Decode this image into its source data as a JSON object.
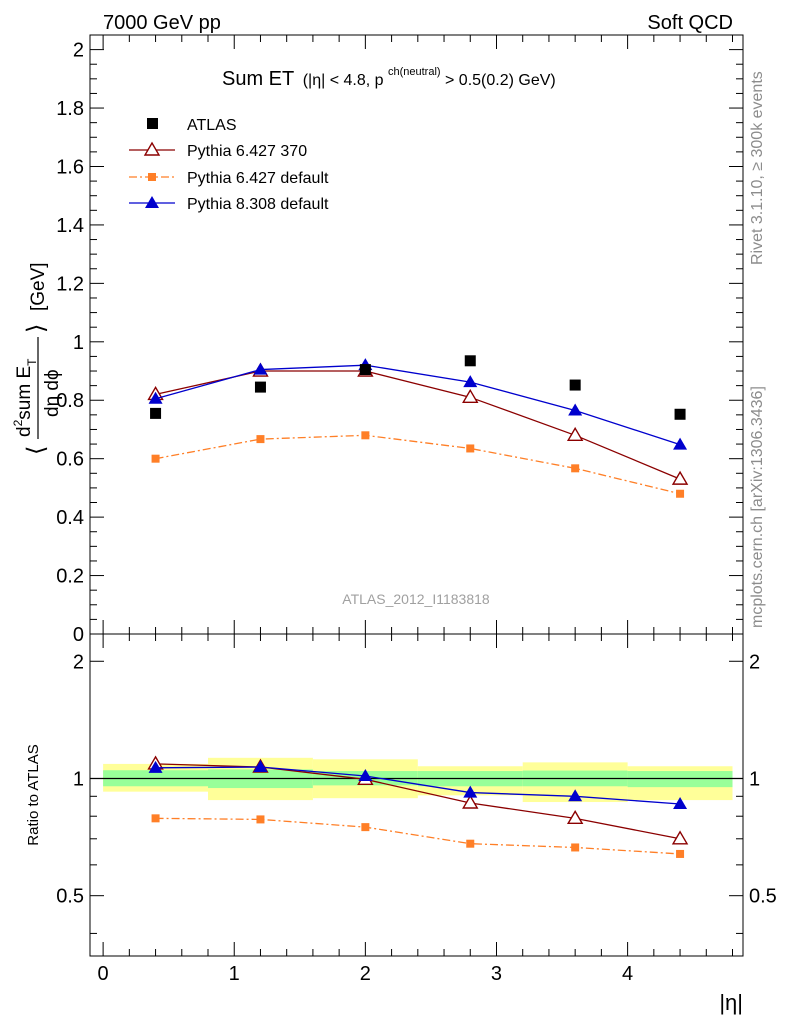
{
  "header": {
    "left": "7000 GeV pp",
    "right": "Soft QCD"
  },
  "side_labels": {
    "rivet": "Rivet 3.1.10, ≥ 300k events",
    "mcplots": "mcplots.cern.ch [arXiv:1306.3436]"
  },
  "title": {
    "main": "Sum ET",
    "cut_a": "(|η| < 4.8, p",
    "cut_sup": "ch(neutral)",
    "cut_b": " > 0.5(0.2) GeV)"
  },
  "watermark": "ATLAS_2012_I1183818",
  "y_label_main": {
    "bracket_l": "⟨",
    "num_d": "d",
    "num_sup": "2",
    "num_text": "sum E",
    "num_sub": "T",
    "den": "dη dϕ",
    "bracket_r": "⟩",
    "unit": "[GeV]"
  },
  "y_label_ratio": "Ratio to ATLAS",
  "x_label": "|η|",
  "colors": {
    "atlas": "#000000",
    "py6_370": "#8b0000",
    "py6_default": "#ff7f27",
    "py8_default": "#0000cd",
    "band_inner": "#99ff99",
    "band_outer": "#ffff99"
  },
  "chart_data": [
    {
      "type": "line",
      "panel": "main",
      "xlim": [
        -0.1,
        4.88
      ],
      "ylim": [
        0,
        2.05
      ],
      "x_ticks": [
        0,
        1,
        2,
        3,
        4
      ],
      "y_ticks": [
        0,
        0.2,
        0.4,
        0.6,
        0.8,
        1,
        1.2,
        1.4,
        1.6,
        1.8,
        2
      ],
      "y_tick_labels": [
        "0",
        "0.2",
        "0.4",
        "0.6",
        "0.8",
        "1",
        "1.2",
        "1.4",
        "1.6",
        "1.8",
        "2"
      ],
      "legend_position": "top-left",
      "x": [
        0.4,
        1.2,
        2.0,
        2.8,
        3.6,
        4.4
      ],
      "series": [
        {
          "name": "ATLAS",
          "values": [
            0.755,
            0.845,
            0.905,
            0.935,
            0.852,
            0.752
          ],
          "marker": "square",
          "color": "#000000"
        },
        {
          "name": "Pythia 6.427 370",
          "values": [
            0.82,
            0.9,
            0.9,
            0.81,
            0.68,
            0.53
          ],
          "marker": "open-triangle",
          "color": "#8b0000"
        },
        {
          "name": "Pythia 6.427 default",
          "values": [
            0.6,
            0.667,
            0.68,
            0.635,
            0.567,
            0.48
          ],
          "marker": "small-square",
          "color": "#ff7f27",
          "dash": "dashdot"
        },
        {
          "name": "Pythia 8.308 default",
          "values": [
            0.805,
            0.905,
            0.92,
            0.862,
            0.765,
            0.648
          ],
          "marker": "filled-triangle",
          "color": "#0000cd"
        }
      ]
    },
    {
      "type": "line",
      "panel": "ratio",
      "xlim": [
        -0.1,
        4.88
      ],
      "ylim": [
        0.35,
        2.35
      ],
      "y_scale": "log",
      "x_ticks": [
        0,
        1,
        2,
        3,
        4
      ],
      "x_tick_labels": [
        "0",
        "1",
        "2",
        "3",
        "4"
      ],
      "y_ticks": [
        0.5,
        1,
        2
      ],
      "y_tick_labels": [
        "0.5",
        "1",
        "2"
      ],
      "x": [
        0.4,
        1.2,
        2.0,
        2.8,
        3.6,
        4.4
      ],
      "bins": [
        [
          0,
          0.8
        ],
        [
          0.8,
          1.6
        ],
        [
          1.6,
          2.4
        ],
        [
          2.4,
          3.2
        ],
        [
          3.2,
          4.0
        ],
        [
          4.0,
          4.8
        ]
      ],
      "band_inner": [
        [
          0.955,
          1.05
        ],
        [
          0.945,
          1.055
        ],
        [
          0.96,
          1.045
        ],
        [
          0.955,
          1.045
        ],
        [
          0.955,
          1.048
        ],
        [
          0.95,
          1.045
        ]
      ],
      "band_outer": [
        [
          0.925,
          1.09
        ],
        [
          0.88,
          1.13
        ],
        [
          0.89,
          1.12
        ],
        [
          0.905,
          1.075
        ],
        [
          0.87,
          1.1
        ],
        [
          0.88,
          1.075
        ]
      ],
      "series": [
        {
          "name": "Pythia 6.427 370",
          "values": [
            1.09,
            1.07,
            0.995,
            0.865,
            0.79,
            0.7
          ],
          "color": "#8b0000",
          "marker": "open-triangle"
        },
        {
          "name": "Pythia 6.427 default",
          "values": [
            0.79,
            0.785,
            0.75,
            0.68,
            0.665,
            0.64
          ],
          "color": "#ff7f27",
          "marker": "small-square",
          "dash": "dashdot"
        },
        {
          "name": "Pythia 8.308 default",
          "values": [
            1.065,
            1.07,
            1.015,
            0.92,
            0.9,
            0.86
          ],
          "color": "#0000cd",
          "marker": "filled-triangle"
        }
      ]
    }
  ]
}
